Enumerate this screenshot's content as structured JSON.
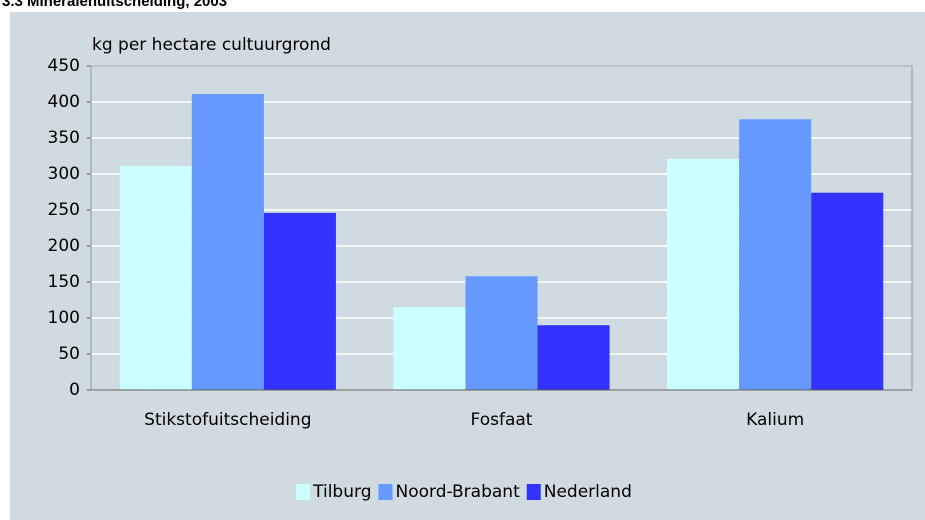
{
  "chart_data": {
    "type": "bar",
    "title": "3.3  Mineralenuitscheiding, 2003",
    "y_label": "kg per hectare cultuurgrond",
    "categories": [
      "Stikstofuitscheiding",
      "Fosfaat",
      "Kalium"
    ],
    "series": [
      {
        "name": "Tilburg",
        "color": "#ccffff",
        "values": [
          311,
          115,
          321
        ]
      },
      {
        "name": "Noord-Brabant",
        "color": "#6699ff",
        "values": [
          411,
          158,
          376
        ]
      },
      {
        "name": "Nederland",
        "color": "#3333ff",
        "values": [
          246,
          90,
          274
        ]
      }
    ],
    "ylim": [
      0,
      450
    ],
    "yticks": [
      0,
      50,
      100,
      150,
      200,
      250,
      300,
      350,
      400,
      450
    ],
    "grid": true,
    "legend": "bottom"
  }
}
